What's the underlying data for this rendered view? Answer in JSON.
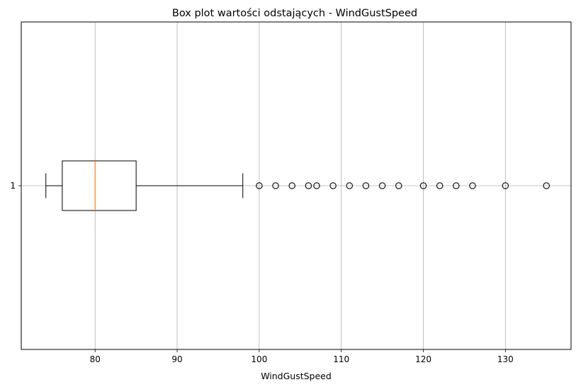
{
  "chart_data": {
    "type": "box",
    "orientation": "horizontal",
    "title": "Box plot wartości odstających - WindGustSpeed",
    "xlabel": "WindGustSpeed",
    "ylabel": "",
    "xlim": [
      71,
      138
    ],
    "xticks": [
      80,
      90,
      100,
      110,
      120,
      130
    ],
    "yticks": [
      "1"
    ],
    "grid": true,
    "series": [
      {
        "category": "1",
        "whisker_low": 74,
        "q1": 76,
        "median": 80,
        "q3": 85,
        "whisker_high": 98,
        "outliers": [
          100,
          102,
          104,
          106,
          107,
          109,
          111,
          113,
          115,
          117,
          120,
          122,
          124,
          126,
          130,
          135
        ]
      }
    ],
    "colors": {
      "box": "#000000",
      "median": "#ff7f0e",
      "grid": "#b0b0b0",
      "outlier_edge": "#000000"
    }
  }
}
